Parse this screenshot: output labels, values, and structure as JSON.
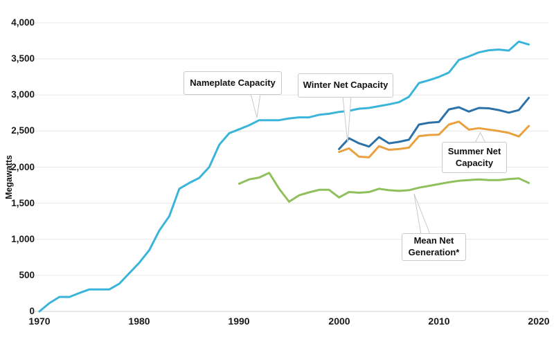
{
  "y_axis": {
    "title": "Megawatts"
  },
  "annotations": {
    "nameplate": {
      "label": "Nameplate Capacity"
    },
    "winter": {
      "label": "Winter Net Capacity"
    },
    "summer": {
      "label": "Summer Net\nCapacity"
    },
    "mean": {
      "label": "Mean Net\nGeneration*"
    }
  },
  "chart_data": {
    "type": "line",
    "title": "",
    "xlabel": "",
    "ylabel": "Megawatts",
    "xlim": [
      1970,
      2020
    ],
    "ylim": [
      0,
      4000
    ],
    "x_ticks": [
      1970,
      1980,
      1990,
      2000,
      2010,
      2020
    ],
    "y_ticks": [
      0,
      500,
      1000,
      1500,
      2000,
      2500,
      3000,
      3500,
      4000
    ],
    "grid": "horizontal",
    "legend": "annotated callouts on lines",
    "units": "Megawatts",
    "series": [
      {
        "id": "nameplate-capacity",
        "name": "Nameplate Capacity",
        "color": "#3ab5d9",
        "start_year": 1970,
        "values": [
          0,
          115,
          200,
          200,
          255,
          305,
          305,
          305,
          385,
          530,
          675,
          850,
          1120,
          1320,
          1700,
          1780,
          1850,
          2000,
          2310,
          2470,
          2525,
          2580,
          2650,
          2650,
          2650,
          2675,
          2690,
          2690,
          2725,
          2740,
          2765,
          2780,
          2810,
          2820,
          2845,
          2870,
          2900,
          2975,
          3165,
          3205,
          3250,
          3310,
          3485,
          3535,
          3590,
          3620,
          3630,
          3615,
          3740,
          3700
        ]
      },
      {
        "id": "winter-net-capacity",
        "name": "Winter Net Capacity",
        "color": "#2c72a8",
        "start_year": 2000,
        "values": [
          2250,
          2400,
          2330,
          2285,
          2415,
          2330,
          2350,
          2380,
          2590,
          2615,
          2625,
          2800,
          2830,
          2770,
          2820,
          2815,
          2790,
          2755,
          2790,
          2960
        ]
      },
      {
        "id": "summer-net-capacity",
        "name": "Summer Net Capacity",
        "color": "#e9a13f",
        "start_year": 2000,
        "values": [
          2210,
          2260,
          2145,
          2135,
          2290,
          2240,
          2250,
          2270,
          2430,
          2445,
          2450,
          2590,
          2630,
          2520,
          2540,
          2520,
          2500,
          2475,
          2425,
          2570
        ]
      },
      {
        "id": "mean-net-generation",
        "name": "Mean Net Generation*",
        "color": "#90c05c",
        "start_year": 1990,
        "values": [
          1770,
          1830,
          1855,
          1920,
          1700,
          1520,
          1610,
          1650,
          1685,
          1685,
          1580,
          1655,
          1645,
          1655,
          1700,
          1680,
          1670,
          1680,
          1715,
          1740,
          1765,
          1790,
          1810,
          1820,
          1830,
          1820,
          1820,
          1835,
          1845,
          1780
        ]
      }
    ]
  }
}
